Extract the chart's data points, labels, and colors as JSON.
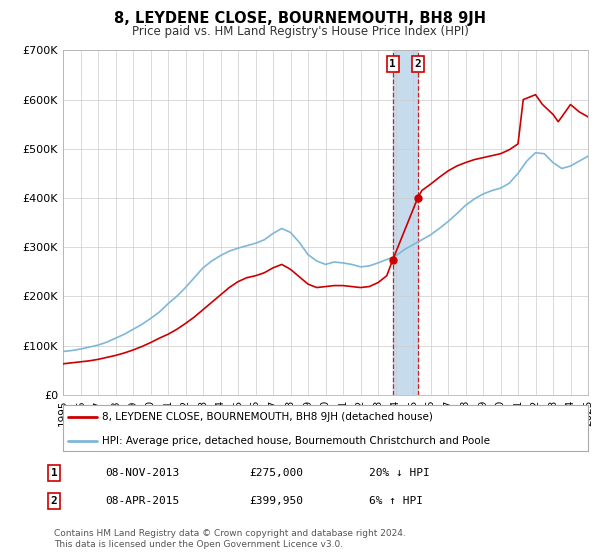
{
  "title": "8, LEYDENE CLOSE, BOURNEMOUTH, BH8 9JH",
  "subtitle": "Price paid vs. HM Land Registry's House Price Index (HPI)",
  "ylim": [
    0,
    700000
  ],
  "xlim": [
    1995,
    2025
  ],
  "yticks": [
    0,
    100000,
    200000,
    300000,
    400000,
    500000,
    600000,
    700000
  ],
  "ytick_labels": [
    "£0",
    "£100K",
    "£200K",
    "£300K",
    "£400K",
    "£500K",
    "£600K",
    "£700K"
  ],
  "xticks": [
    1995,
    1996,
    1997,
    1998,
    1999,
    2000,
    2001,
    2002,
    2003,
    2004,
    2005,
    2006,
    2007,
    2008,
    2009,
    2010,
    2011,
    2012,
    2013,
    2014,
    2015,
    2016,
    2017,
    2018,
    2019,
    2020,
    2021,
    2022,
    2023,
    2024,
    2025
  ],
  "hpi_color": "#7db8d8",
  "price_color": "#cc0000",
  "transaction1_date": 2013.85,
  "transaction1_price": 275000,
  "transaction2_date": 2015.27,
  "transaction2_price": 399950,
  "shade_color": "#c6dcec",
  "legend_line1": "8, LEYDENE CLOSE, BOURNEMOUTH, BH8 9JH (detached house)",
  "legend_line2": "HPI: Average price, detached house, Bournemouth Christchurch and Poole",
  "table_row1": [
    "1",
    "08-NOV-2013",
    "£275,000",
    "20% ↓ HPI"
  ],
  "table_row2": [
    "2",
    "08-APR-2015",
    "£399,950",
    "6% ↑ HPI"
  ],
  "footer1": "Contains HM Land Registry data © Crown copyright and database right 2024.",
  "footer2": "This data is licensed under the Open Government Licence v3.0.",
  "background_color": "#ffffff",
  "grid_color": "#cccccc",
  "hpi_years": [
    1995,
    1995.5,
    1996,
    1996.5,
    1997,
    1997.5,
    1998,
    1998.5,
    1999,
    1999.5,
    2000,
    2000.5,
    2001,
    2001.5,
    2002,
    2002.5,
    2003,
    2003.5,
    2004,
    2004.5,
    2005,
    2005.5,
    2006,
    2006.5,
    2007,
    2007.5,
    2008,
    2008.5,
    2009,
    2009.5,
    2010,
    2010.5,
    2011,
    2011.5,
    2012,
    2012.5,
    2013,
    2013.5,
    2014,
    2014.5,
    2015,
    2015.5,
    2016,
    2016.5,
    2017,
    2017.5,
    2018,
    2018.5,
    2019,
    2019.5,
    2020,
    2020.5,
    2021,
    2021.5,
    2022,
    2022.5,
    2023,
    2023.5,
    2024,
    2024.5,
    2025
  ],
  "hpi_values": [
    88000,
    90000,
    93000,
    97000,
    101000,
    107000,
    115000,
    123000,
    133000,
    143000,
    155000,
    168000,
    185000,
    200000,
    218000,
    238000,
    258000,
    272000,
    283000,
    292000,
    298000,
    303000,
    308000,
    315000,
    328000,
    338000,
    330000,
    310000,
    285000,
    272000,
    265000,
    270000,
    268000,
    265000,
    260000,
    262000,
    268000,
    275000,
    282000,
    295000,
    305000,
    315000,
    325000,
    338000,
    352000,
    368000,
    385000,
    398000,
    408000,
    415000,
    420000,
    430000,
    450000,
    475000,
    492000,
    490000,
    472000,
    460000,
    465000,
    475000,
    485000
  ],
  "price_years": [
    1995,
    1995.5,
    1996,
    1996.5,
    1997,
    1997.5,
    1998,
    1998.5,
    1999,
    1999.5,
    2000,
    2000.5,
    2001,
    2001.5,
    2002,
    2002.5,
    2003,
    2003.5,
    2004,
    2004.5,
    2005,
    2005.5,
    2006,
    2006.5,
    2007,
    2007.5,
    2008,
    2008.5,
    2009,
    2009.5,
    2010,
    2010.5,
    2011,
    2011.5,
    2012,
    2012.5,
    2013,
    2013.5,
    2013.85,
    2015.27,
    2015.5,
    2016,
    2016.5,
    2017,
    2017.5,
    2018,
    2018.5,
    2019,
    2019.5,
    2020,
    2020.5,
    2021,
    2021.3,
    2022,
    2022.4,
    2023,
    2023.3,
    2023.7,
    2024,
    2024.5,
    2025
  ],
  "price_values": [
    63000,
    65000,
    67000,
    69000,
    72000,
    76000,
    80000,
    85000,
    91000,
    98000,
    106000,
    115000,
    123000,
    133000,
    145000,
    158000,
    173000,
    188000,
    203000,
    218000,
    230000,
    238000,
    242000,
    248000,
    258000,
    265000,
    255000,
    240000,
    225000,
    218000,
    220000,
    222000,
    222000,
    220000,
    218000,
    220000,
    228000,
    242000,
    275000,
    399950,
    415000,
    428000,
    442000,
    455000,
    465000,
    472000,
    478000,
    482000,
    486000,
    490000,
    498000,
    510000,
    600000,
    610000,
    590000,
    570000,
    555000,
    575000,
    590000,
    575000,
    565000
  ]
}
